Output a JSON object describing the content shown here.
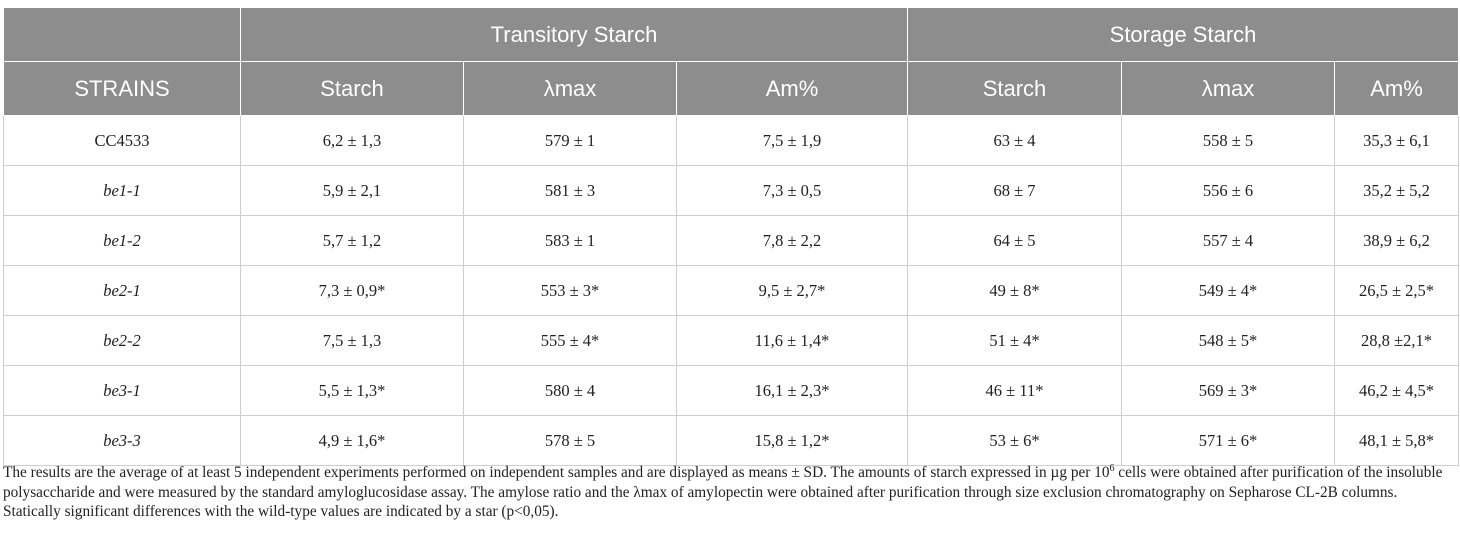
{
  "table": {
    "group_headers": [
      "Transitory Starch",
      "Storage Starch"
    ],
    "columns": [
      "STRAINS",
      "Starch",
      "λmax",
      "Am%",
      "Starch",
      "λmax",
      "Am%"
    ],
    "rows": [
      [
        "CC4533",
        "6,2 ± 1,3",
        "579 ± 1",
        "7,5 ± 1,9",
        "63 ± 4",
        "558 ± 5",
        "35,3 ± 6,1"
      ],
      [
        "be1-1",
        "5,9 ± 2,1",
        "581 ± 3",
        "7,3 ± 0,5",
        "68 ± 7",
        "556 ± 6",
        "35,2 ± 5,2"
      ],
      [
        "be1-2",
        "5,7 ± 1,2",
        "583 ± 1",
        "7,8 ± 2,2",
        "64 ± 5",
        "557 ± 4",
        "38,9 ± 6,2"
      ],
      [
        "be2-1",
        "7,3 ± 0,9*",
        "553 ± 3*",
        "9,5 ± 2,7*",
        "49 ± 8*",
        "549 ± 4*",
        "26,5 ± 2,5*"
      ],
      [
        "be2-2",
        "7,5 ± 1,3",
        "555 ± 4*",
        "11,6 ± 1,4*",
        "51 ± 4*",
        "548 ± 5*",
        "28,8 ±2,1*"
      ],
      [
        "be3-1",
        "5,5 ± 1,3*",
        "580 ± 4",
        "16,1 ± 2,3*",
        "46 ± 11*",
        "569 ± 3*",
        "46,2 ± 4,5*"
      ],
      [
        "be3-3",
        "4,9 ± 1,6*",
        "578 ± 5",
        "15,8 ± 1,2*",
        "53 ± 6*",
        "571 ± 6*",
        "48,1 ± 5,8*"
      ]
    ]
  },
  "footnote": [
    "The results are the average of at least 5 independent experiments performed on independent samples and are displayed as means ± SD. The amounts of starch expressed in µg per 10",
    "6",
    " cells were obtained after purification of the insoluble polysaccharide and were measured by the standard amyloglucosidase assay. The amylose ratio and the λmax of amylopectin were obtained after purification through size exclusion chromatography on Sepharose CL-2B columns. Statically significant differences with the wild-type values are indicated by a star (p<0,05)."
  ]
}
